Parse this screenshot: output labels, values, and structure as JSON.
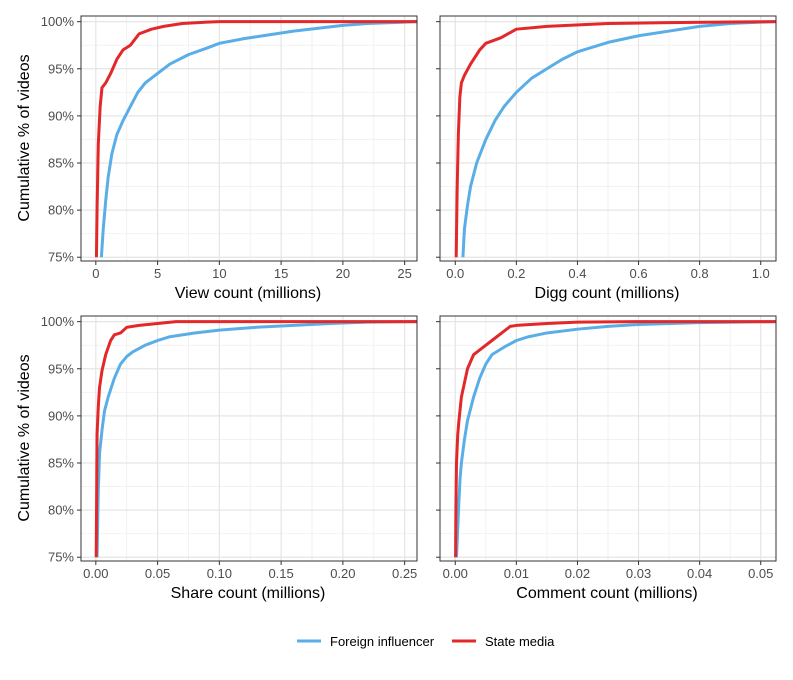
{
  "chart_data": [
    {
      "type": "line",
      "xlabel": "View count (millions)",
      "ylabel": "Cumulative % of videos",
      "xlim": [
        -1.2,
        26
      ],
      "ylim": [
        74.6,
        100.6
      ],
      "xticks": [
        0,
        5,
        10,
        15,
        20,
        25
      ],
      "xtick_labels": [
        "0",
        "5",
        "10",
        "15",
        "20",
        "25"
      ],
      "yticks": [
        75,
        80,
        85,
        90,
        95,
        100
      ],
      "ytick_labels": [
        "75%",
        "80%",
        "85%",
        "90%",
        "95%",
        "100%"
      ],
      "series": [
        {
          "name": "Foreign influencer",
          "x": [
            0.45,
            0.6,
            0.8,
            1.0,
            1.3,
            1.7,
            2.2,
            2.8,
            3.4,
            4.0,
            5.0,
            6.0,
            7.5,
            9.0,
            10.0,
            12.0,
            14.0,
            16.0,
            18.0,
            20.0,
            22.0,
            24.0,
            26.0
          ],
          "y": [
            75,
            78,
            81,
            83.5,
            86,
            88,
            89.5,
            91,
            92.5,
            93.5,
            94.5,
            95.5,
            96.5,
            97.2,
            97.7,
            98.2,
            98.6,
            99.0,
            99.3,
            99.6,
            99.8,
            99.9,
            100
          ]
        },
        {
          "name": "State media",
          "x": [
            0.05,
            0.1,
            0.2,
            0.35,
            0.5,
            0.8,
            1.2,
            1.7,
            2.2,
            2.8,
            3.5,
            4.5,
            5.5,
            7.0,
            9.0,
            10.0,
            26.0
          ],
          "y": [
            75,
            80,
            87,
            91,
            93,
            93.5,
            94.5,
            96,
            97,
            97.5,
            98.7,
            99.2,
            99.5,
            99.8,
            99.95,
            100,
            100
          ]
        }
      ]
    },
    {
      "type": "line",
      "xlabel": "Digg count (millions)",
      "ylabel": "",
      "xlim": [
        -0.05,
        1.05
      ],
      "ylim": [
        74.6,
        100.6
      ],
      "xticks": [
        0,
        0.2,
        0.4,
        0.6,
        0.8,
        1.0
      ],
      "xtick_labels": [
        "0.0",
        "0.2",
        "0.4",
        "0.6",
        "0.8",
        "1.0"
      ],
      "yticks": [
        75,
        80,
        85,
        90,
        95,
        100
      ],
      "ytick_labels": [
        "75%",
        "80%",
        "85%",
        "90%",
        "95%",
        "100%"
      ],
      "series": [
        {
          "name": "Foreign influencer",
          "x": [
            0.025,
            0.03,
            0.04,
            0.05,
            0.07,
            0.1,
            0.13,
            0.16,
            0.2,
            0.25,
            0.3,
            0.35,
            0.4,
            0.5,
            0.6,
            0.7,
            0.8,
            0.9,
            1.0,
            1.05
          ],
          "y": [
            75,
            78,
            80.5,
            82.5,
            85,
            87.5,
            89.5,
            91,
            92.5,
            94,
            95,
            96,
            96.8,
            97.8,
            98.5,
            99.0,
            99.5,
            99.8,
            99.95,
            100
          ]
        },
        {
          "name": "State media",
          "x": [
            0.003,
            0.006,
            0.01,
            0.015,
            0.02,
            0.03,
            0.05,
            0.08,
            0.1,
            0.15,
            0.2,
            0.3,
            0.5,
            0.7,
            0.9,
            1.05
          ],
          "y": [
            75,
            82,
            88,
            92,
            93.5,
            94.3,
            95.5,
            97,
            97.7,
            98.3,
            99.2,
            99.5,
            99.8,
            99.9,
            99.97,
            100
          ]
        }
      ]
    },
    {
      "type": "line",
      "xlabel": "Share count (millions)",
      "ylabel": "Cumulative % of videos",
      "xlim": [
        -0.012,
        0.26
      ],
      "ylim": [
        74.6,
        100.6
      ],
      "xticks": [
        0,
        0.05,
        0.1,
        0.15,
        0.2,
        0.25
      ],
      "xtick_labels": [
        "0.00",
        "0.05",
        "0.10",
        "0.15",
        "0.20",
        "0.25"
      ],
      "yticks": [
        75,
        80,
        85,
        90,
        95,
        100
      ],
      "ytick_labels": [
        "75%",
        "80%",
        "85%",
        "90%",
        "95%",
        "100%"
      ],
      "series": [
        {
          "name": "Foreign influencer",
          "x": [
            0.001,
            0.002,
            0.003,
            0.005,
            0.007,
            0.01,
            0.015,
            0.02,
            0.025,
            0.03,
            0.04,
            0.05,
            0.06,
            0.08,
            0.1,
            0.13,
            0.16,
            0.19,
            0.22,
            0.26
          ],
          "y": [
            75,
            82,
            86,
            88.5,
            90.5,
            92,
            94,
            95.5,
            96.3,
            96.8,
            97.5,
            98,
            98.4,
            98.8,
            99.1,
            99.4,
            99.6,
            99.8,
            99.95,
            100
          ]
        },
        {
          "name": "State media",
          "x": [
            0.0003,
            0.0007,
            0.001,
            0.002,
            0.003,
            0.005,
            0.008,
            0.012,
            0.015,
            0.02,
            0.025,
            0.035,
            0.05,
            0.065,
            0.1,
            0.26
          ],
          "y": [
            75,
            82,
            88,
            91,
            93,
            94.8,
            96.5,
            98,
            98.6,
            98.8,
            99.4,
            99.6,
            99.8,
            100,
            100,
            100
          ]
        }
      ]
    },
    {
      "type": "line",
      "xlabel": "Comment count (millions)",
      "ylabel": "",
      "xlim": [
        -0.0025,
        0.0525
      ],
      "ylim": [
        74.6,
        100.6
      ],
      "xticks": [
        0,
        0.01,
        0.02,
        0.03,
        0.04,
        0.05
      ],
      "xtick_labels": [
        "0.00",
        "0.01",
        "0.02",
        "0.03",
        "0.04",
        "0.05"
      ],
      "yticks": [
        75,
        80,
        85,
        90,
        95,
        100
      ],
      "ytick_labels": [
        "75%",
        "80%",
        "85%",
        "90%",
        "95%",
        "100%"
      ],
      "series": [
        {
          "name": "Foreign influencer",
          "x": [
            0.0002,
            0.0004,
            0.0006,
            0.0008,
            0.001,
            0.0015,
            0.002,
            0.003,
            0.004,
            0.005,
            0.006,
            0.008,
            0.01,
            0.012,
            0.015,
            0.02,
            0.025,
            0.03,
            0.04,
            0.0525
          ],
          "y": [
            75,
            78,
            81,
            83.5,
            85,
            87.5,
            89.5,
            92,
            94,
            95.5,
            96.5,
            97.3,
            98,
            98.4,
            98.8,
            99.2,
            99.5,
            99.7,
            99.9,
            100
          ]
        },
        {
          "name": "State media",
          "x": [
            5e-05,
            0.0001,
            0.0002,
            0.0004,
            0.0006,
            0.001,
            0.0015,
            0.002,
            0.003,
            0.004,
            0.006,
            0.008,
            0.009,
            0.01,
            0.015,
            0.02,
            0.03,
            0.0525
          ],
          "y": [
            75,
            80,
            85,
            88,
            89.5,
            92,
            93.5,
            95,
            96.5,
            97,
            98,
            99,
            99.5,
            99.6,
            99.8,
            99.95,
            100,
            100
          ]
        }
      ]
    }
  ],
  "legend": {
    "placement": "bottom",
    "entries": [
      {
        "label": "Foreign influencer",
        "color": "#5aaee8"
      },
      {
        "label": "State media",
        "color": "#e3282a"
      }
    ]
  },
  "colors": {
    "Foreign influencer": "#5aaee8",
    "State media": "#e3282a",
    "grid_major": "#e5e5e5",
    "grid_minor": "#f2f2f2",
    "panel_border": "#333333"
  }
}
